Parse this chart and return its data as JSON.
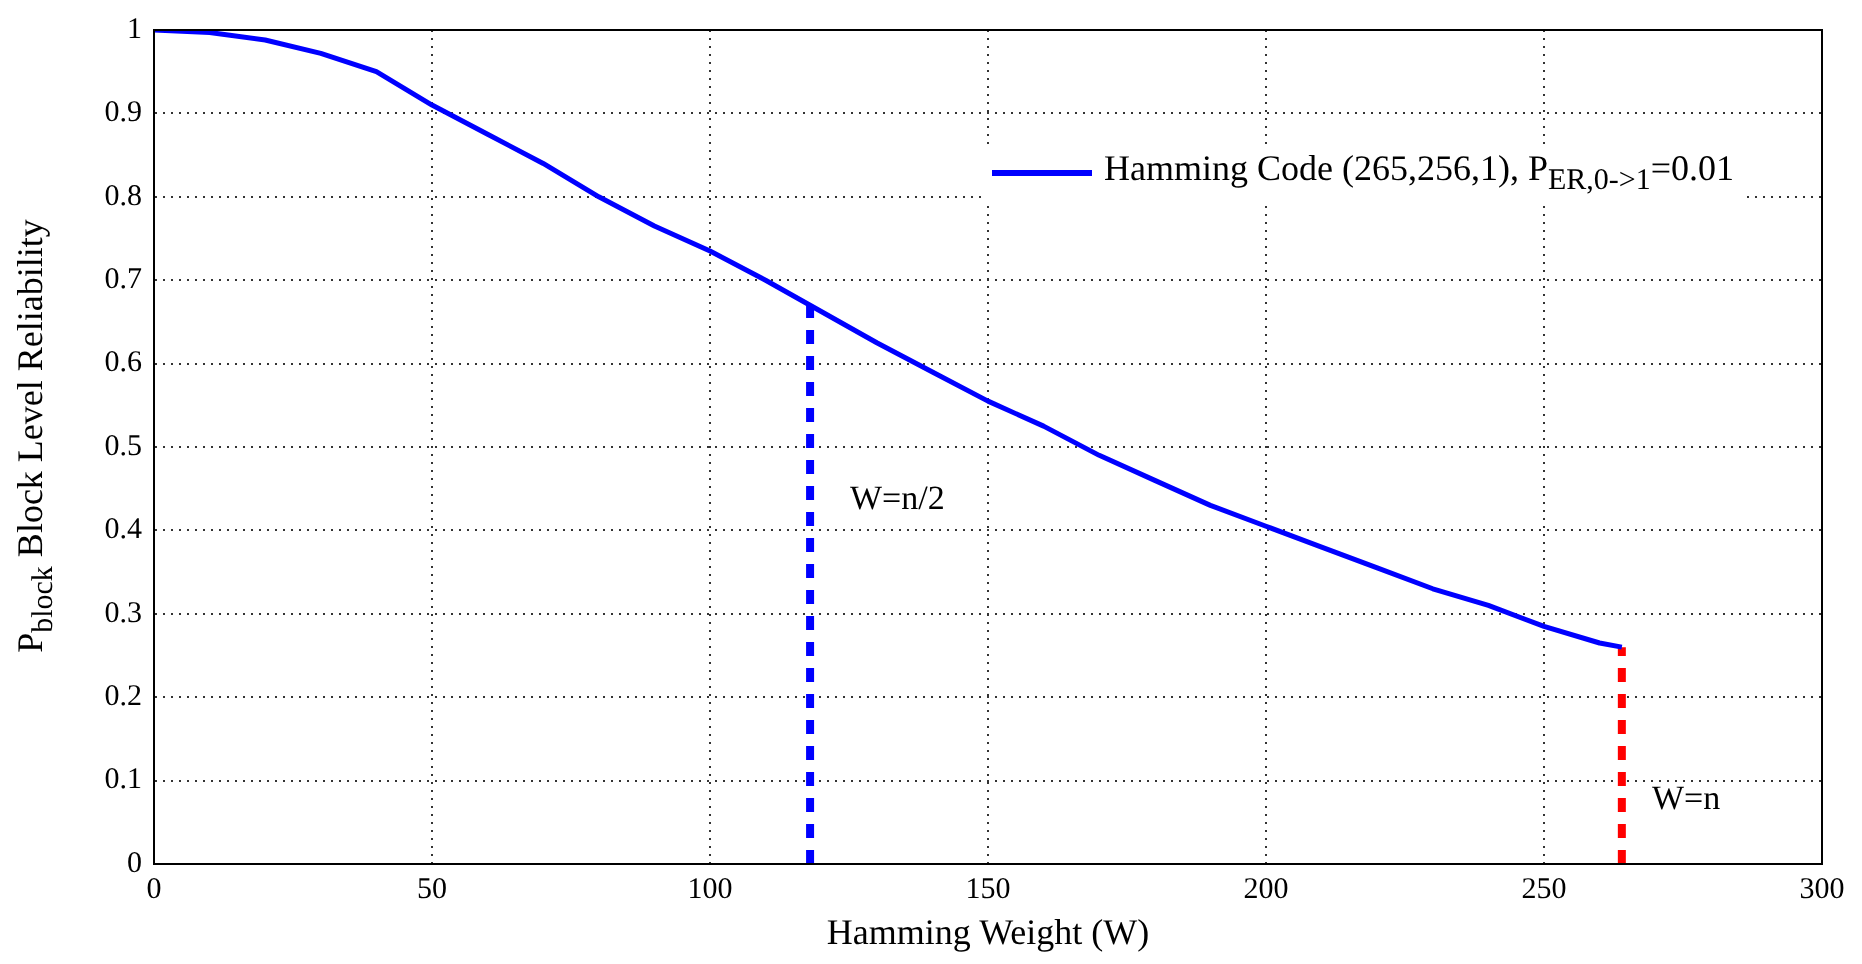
{
  "chart_data": {
    "type": "line",
    "xlabel": "Hamming Weight (W)",
    "ylabel": "P$_{block}$ Block Level Reliability",
    "xlim": [
      0,
      300
    ],
    "ylim": [
      0,
      1
    ],
    "xticks": [
      0,
      50,
      100,
      150,
      200,
      250,
      300
    ],
    "yticks": [
      0,
      0.1,
      0.2,
      0.3,
      0.4,
      0.5,
      0.6,
      0.7,
      0.8,
      0.9,
      1
    ],
    "grid": true,
    "legend": "top right",
    "line_style": "solid",
    "marker": "none",
    "series": [
      {
        "name": "Hamming Code (265,256,1), P$_{ER,0->1}$=0.01",
        "color": "#0000ff",
        "x": [
          0,
          10,
          20,
          30,
          40,
          50,
          60,
          70,
          80,
          90,
          100,
          110,
          118,
          130,
          140,
          150,
          160,
          170,
          180,
          190,
          200,
          210,
          220,
          230,
          240,
          250,
          260,
          264
        ],
        "values": [
          1,
          0.997,
          0.988,
          0.972,
          0.95,
          0.91,
          0.875,
          0.84,
          0.8,
          0.765,
          0.735,
          0.7,
          0.67,
          0.625,
          0.59,
          0.555,
          0.525,
          0.49,
          0.46,
          0.43,
          0.405,
          0.38,
          0.355,
          0.33,
          0.31,
          0.285,
          0.265,
          0.26
        ]
      },
      {
        "color": "#0000ff",
        "line_style": "dashed",
        "x": [
          118,
          118
        ],
        "values": [
          0,
          0.67
        ]
      },
      {
        "color": "#ff0000",
        "line_style": "dashed",
        "x": [
          264,
          264
        ],
        "values": [
          0,
          0.26
        ]
      }
    ],
    "annotations": [
      "W=n/2",
      "W=n"
    ]
  }
}
